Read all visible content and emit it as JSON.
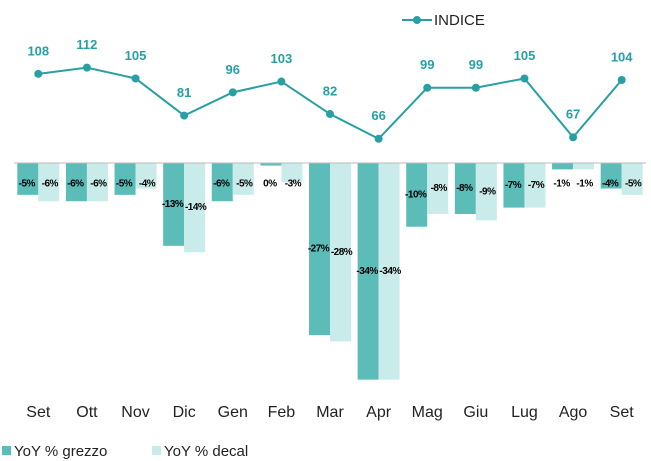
{
  "chart_data": {
    "type": "bar",
    "categories": [
      "Set",
      "Ott",
      "Nov",
      "Dic",
      "Gen",
      "Feb",
      "Mar",
      "Apr",
      "Mag",
      "Giu",
      "Lug",
      "Ago",
      "Set"
    ],
    "ylim": [
      -35,
      0
    ],
    "y2lim": [
      40,
      115
    ],
    "series": [
      {
        "name": "YoY % grezzo",
        "color": "#5bbcb8",
        "values": [
          -5,
          -6,
          -5,
          -13,
          -6,
          -0.4,
          -27,
          -34,
          -10,
          -8,
          -7,
          -1,
          -4
        ],
        "value_labels": [
          "-5%",
          "-6%",
          "-5%",
          "-13%",
          "-6%",
          "0%",
          "-27%",
          "-34%",
          "-10%",
          "-8%",
          "-7%",
          "-1%",
          "-4%"
        ]
      },
      {
        "name": "YoY % decal",
        "color": "#c9ebe9",
        "values": [
          -6,
          -6,
          -4,
          -14,
          -5,
          -3,
          -28,
          -34,
          -8,
          -9,
          -7,
          -1,
          -5
        ],
        "value_labels": [
          "-6%",
          "-6%",
          "-4%",
          "-14%",
          "-5%",
          "-3%",
          "-28%",
          "-34%",
          "-8%",
          "-9%",
          "-7%",
          "-1%",
          "-5%"
        ]
      },
      {
        "name": "INDICE",
        "color": "#26a0a4",
        "type": "line",
        "axis": "y2",
        "values": [
          108,
          112,
          105,
          81,
          96,
          103,
          82,
          66,
          99,
          99,
          105,
          67,
          104
        ]
      }
    ]
  }
}
